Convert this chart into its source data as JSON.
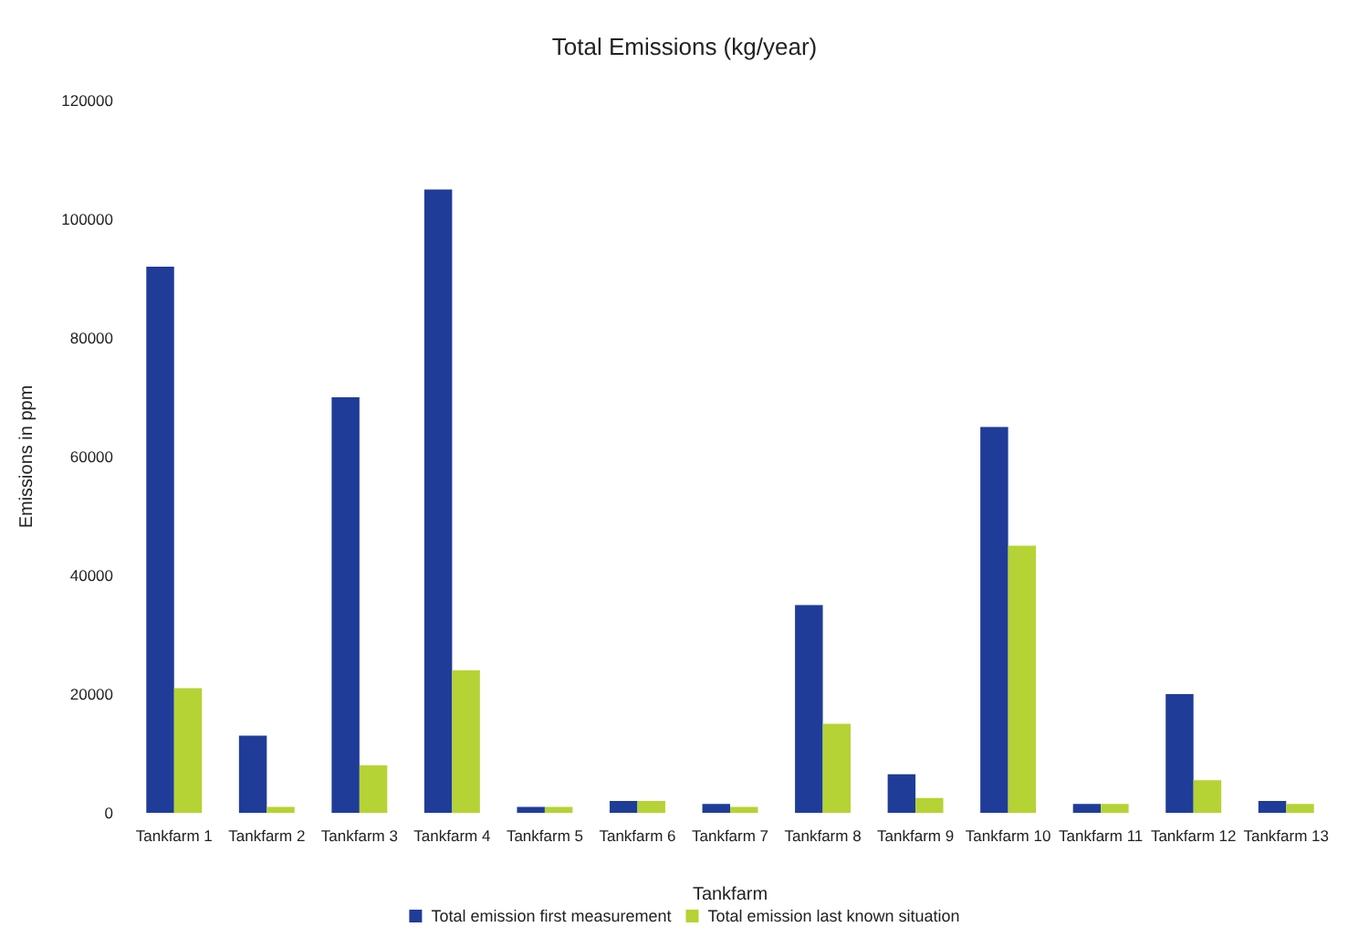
{
  "chart_data": {
    "type": "bar",
    "title": "Total Emissions (kg/year)",
    "xlabel": "Tankfarm",
    "ylabel": "Emissions in ppm",
    "categories": [
      "Tankfarm 1",
      "Tankfarm 2",
      "Tankfarm 3",
      "Tankfarm 4",
      "Tankfarm 5",
      "Tankfarm 6",
      "Tankfarm 7",
      "Tankfarm 8",
      "Tankfarm 9",
      "Tankfarm 10",
      "Tankfarm 11",
      "Tankfarm 12",
      "Tankfarm 13"
    ],
    "series": [
      {
        "name": "Total emission first measurement",
        "color": "#1f3c99",
        "values": [
          92000,
          13000,
          70000,
          105000,
          1000,
          2000,
          1500,
          35000,
          6500,
          65000,
          1500,
          20000,
          2000
        ]
      },
      {
        "name": "Total emission last known situation",
        "color": "#b5d334",
        "values": [
          21000,
          1000,
          8000,
          24000,
          1000,
          2000,
          1000,
          15000,
          2500,
          45000,
          1500,
          5500,
          1500
        ]
      }
    ],
    "ylim": [
      0,
      120000
    ],
    "yticks": [
      0,
      20000,
      40000,
      60000,
      80000,
      100000,
      120000
    ],
    "grid": false,
    "legend": "bottom"
  }
}
